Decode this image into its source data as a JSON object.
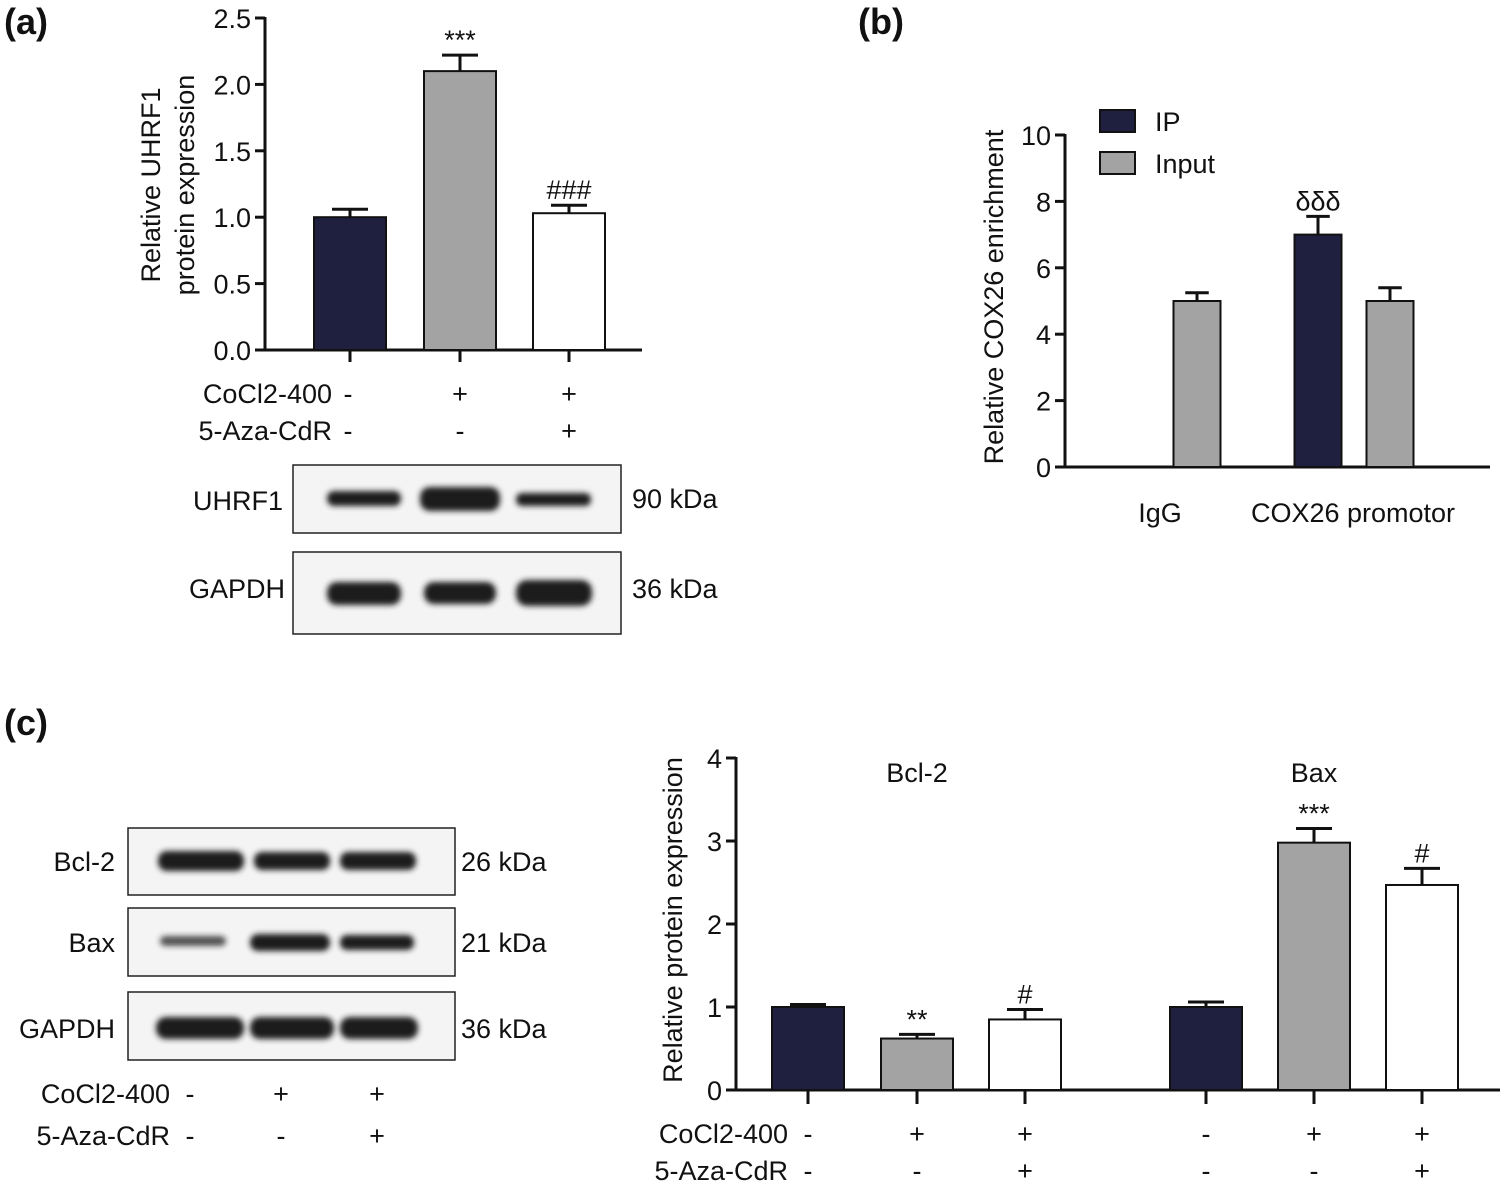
{
  "panels": {
    "a": "(a)",
    "b": "(b)",
    "c": "(c)"
  },
  "colors": {
    "dark": "#1f2040",
    "gray": "#a3a3a3",
    "white": "#ffffff"
  },
  "chart_data": [
    {
      "id": "a",
      "type": "bar",
      "ylabel": [
        "Relative UHRF1",
        "protein expression"
      ],
      "ylim": [
        0,
        2.5
      ],
      "yticks": [
        "0.0",
        "0.5",
        "1.0",
        "1.5",
        "2.0",
        "2.5"
      ],
      "ytick_values": [
        0,
        0.5,
        1.0,
        1.5,
        2.0,
        2.5
      ],
      "bars": [
        {
          "value": 1.0,
          "error": 0.06,
          "color": "dark",
          "annotation": ""
        },
        {
          "value": 2.1,
          "error": 0.12,
          "color": "gray",
          "annotation": "***"
        },
        {
          "value": 1.03,
          "error": 0.06,
          "color": "white",
          "annotation": "###"
        }
      ],
      "conditions": [
        {
          "label": "CoCl2-400",
          "values": [
            "-",
            "+",
            "+"
          ]
        },
        {
          "label": "5-Aza-CdR",
          "values": [
            "-",
            "-",
            "+"
          ]
        }
      ]
    },
    {
      "id": "b",
      "type": "bar",
      "ylabel": [
        "Relative COX26 enrichment"
      ],
      "ylim": [
        0,
        10
      ],
      "yticks": [
        "0",
        "2",
        "4",
        "6",
        "8",
        "10"
      ],
      "ytick_values": [
        0,
        2,
        4,
        6,
        8,
        10
      ],
      "categories": [
        "IgG",
        "COX26 promotor"
      ],
      "legend": [
        {
          "name": "IP",
          "color": "dark"
        },
        {
          "name": "Input",
          "color": "gray"
        }
      ],
      "legend_position": "top-left",
      "series": [
        {
          "name": "IP",
          "values": [
            0,
            7.0
          ],
          "errors": [
            0,
            0.55
          ],
          "annotations": [
            "",
            "δδδ"
          ]
        },
        {
          "name": "Input",
          "values": [
            5.0,
            5.0
          ],
          "errors": [
            0.25,
            0.4
          ],
          "annotations": [
            "",
            ""
          ]
        }
      ]
    },
    {
      "id": "c",
      "type": "bar",
      "ylabel": [
        "Relative protein expression"
      ],
      "ylim": [
        0,
        4
      ],
      "yticks": [
        "0",
        "1",
        "2",
        "3",
        "4"
      ],
      "ytick_values": [
        0,
        1,
        2,
        3,
        4
      ],
      "groups": [
        {
          "name": "Bcl-2",
          "bars": [
            {
              "value": 1.0,
              "error": 0.03,
              "color": "dark",
              "annotation": ""
            },
            {
              "value": 0.62,
              "error": 0.05,
              "color": "gray",
              "annotation": "**"
            },
            {
              "value": 0.85,
              "error": 0.12,
              "color": "white",
              "annotation": "#"
            }
          ]
        },
        {
          "name": "Bax",
          "bars": [
            {
              "value": 1.0,
              "error": 0.06,
              "color": "dark",
              "annotation": ""
            },
            {
              "value": 2.98,
              "error": 0.17,
              "color": "gray",
              "annotation": "***"
            },
            {
              "value": 2.47,
              "error": 0.2,
              "color": "white",
              "annotation": "#"
            }
          ]
        }
      ],
      "conditions": [
        {
          "label": "CoCl2-400",
          "values": [
            "-",
            "+",
            "+",
            "-",
            "+",
            "+"
          ]
        },
        {
          "label": "5-Aza-CdR",
          "values": [
            "-",
            "-",
            "+",
            "-",
            "-",
            "+"
          ]
        }
      ]
    }
  ],
  "blots_a": [
    {
      "label": "UHRF1",
      "size": "90 kDa"
    },
    {
      "label": "GAPDH",
      "size": "36 kDa"
    }
  ],
  "blots_c": [
    {
      "label": "Bcl-2",
      "size": "26 kDa"
    },
    {
      "label": "Bax",
      "size": "21 kDa"
    },
    {
      "label": "GAPDH",
      "size": "36 kDa"
    }
  ],
  "conditions_c_blot": [
    {
      "label": "CoCl2-400",
      "values": [
        "-",
        "+",
        "+"
      ]
    },
    {
      "label": "5-Aza-CdR",
      "values": [
        "-",
        "-",
        "+"
      ]
    }
  ]
}
